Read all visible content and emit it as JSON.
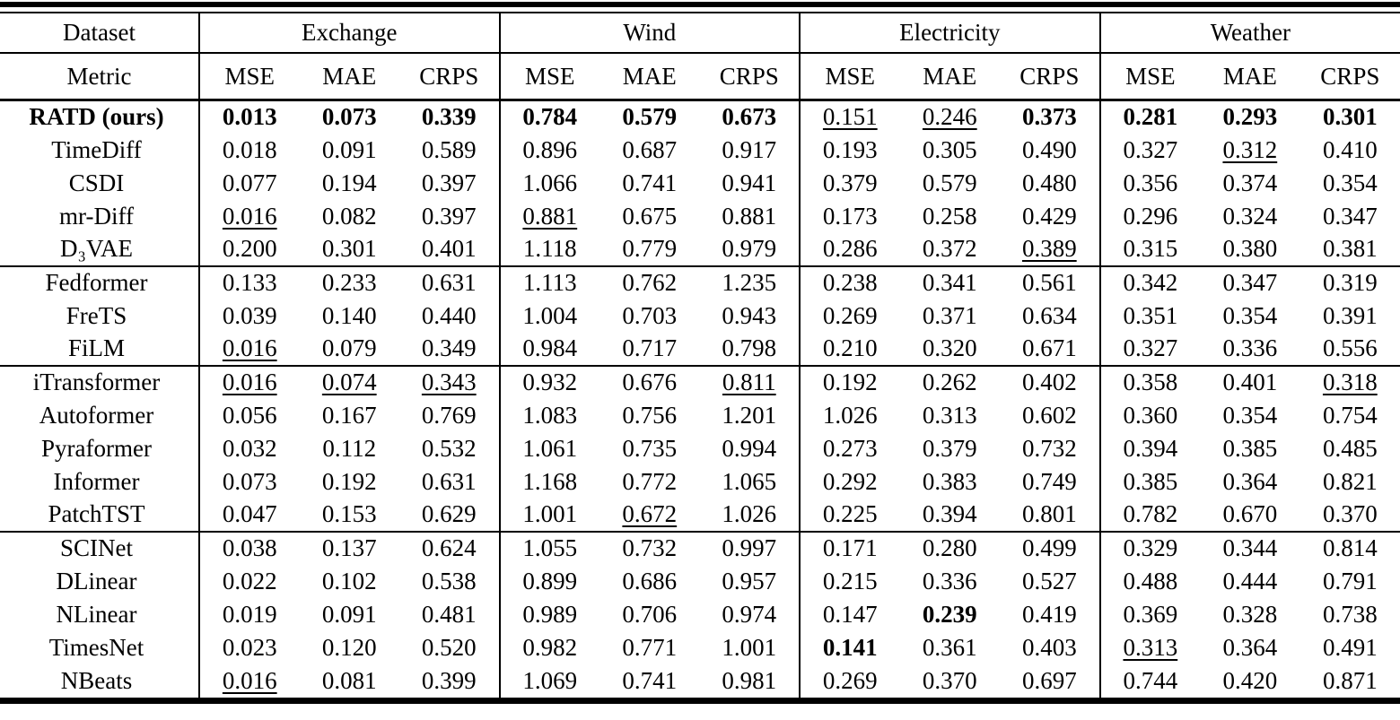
{
  "table": {
    "header": {
      "dataset_label": "Dataset",
      "metric_label": "Metric",
      "groups": [
        "Exchange",
        "Wind",
        "Electricity",
        "Weather"
      ],
      "metrics": [
        "MSE",
        "MAE",
        "CRPS"
      ]
    },
    "colors": {
      "text": "#000000",
      "background": "#ffffff",
      "rule": "#000000"
    },
    "blocks": [
      {
        "rows": [
          {
            "model": "RATD (ours)",
            "model_bold": true,
            "cells": [
              [
                "0.013",
                "b"
              ],
              [
                "0.073",
                "b"
              ],
              [
                "0.339",
                "b"
              ],
              [
                "0.784",
                "b"
              ],
              [
                "0.579",
                "b"
              ],
              [
                "0.673",
                "b"
              ],
              [
                "0.151",
                "u"
              ],
              [
                "0.246",
                "u"
              ],
              [
                "0.373",
                "b"
              ],
              [
                "0.281",
                "b"
              ],
              [
                "0.293",
                "b"
              ],
              [
                "0.301",
                "b"
              ]
            ]
          },
          {
            "model": "TimeDiff",
            "model_bold": false,
            "cells": [
              [
                "0.018",
                ""
              ],
              [
                "0.091",
                ""
              ],
              [
                "0.589",
                ""
              ],
              [
                "0.896",
                ""
              ],
              [
                "0.687",
                ""
              ],
              [
                "0.917",
                ""
              ],
              [
                "0.193",
                ""
              ],
              [
                "0.305",
                ""
              ],
              [
                "0.490",
                ""
              ],
              [
                "0.327",
                ""
              ],
              [
                "0.312",
                "u"
              ],
              [
                "0.410",
                ""
              ]
            ]
          },
          {
            "model": "CSDI",
            "model_bold": false,
            "cells": [
              [
                "0.077",
                ""
              ],
              [
                "0.194",
                ""
              ],
              [
                "0.397",
                ""
              ],
              [
                "1.066",
                ""
              ],
              [
                "0.741",
                ""
              ],
              [
                "0.941",
                ""
              ],
              [
                "0.379",
                ""
              ],
              [
                "0.579",
                ""
              ],
              [
                "0.480",
                ""
              ],
              [
                "0.356",
                ""
              ],
              [
                "0.374",
                ""
              ],
              [
                "0.354",
                ""
              ]
            ]
          },
          {
            "model": "mr-Diff",
            "model_bold": false,
            "cells": [
              [
                "0.016",
                "u"
              ],
              [
                "0.082",
                ""
              ],
              [
                "0.397",
                ""
              ],
              [
                "0.881",
                "u"
              ],
              [
                "0.675",
                ""
              ],
              [
                "0.881",
                ""
              ],
              [
                "0.173",
                ""
              ],
              [
                "0.258",
                ""
              ],
              [
                "0.429",
                ""
              ],
              [
                "0.296",
                ""
              ],
              [
                "0.324",
                ""
              ],
              [
                "0.347",
                ""
              ]
            ]
          },
          {
            "model": "D₃VAE",
            "model_bold": false,
            "cells": [
              [
                "0.200",
                ""
              ],
              [
                "0.301",
                ""
              ],
              [
                "0.401",
                ""
              ],
              [
                "1.118",
                ""
              ],
              [
                "0.779",
                ""
              ],
              [
                "0.979",
                ""
              ],
              [
                "0.286",
                ""
              ],
              [
                "0.372",
                ""
              ],
              [
                "0.389",
                "u"
              ],
              [
                "0.315",
                ""
              ],
              [
                "0.380",
                ""
              ],
              [
                "0.381",
                ""
              ]
            ]
          }
        ]
      },
      {
        "rows": [
          {
            "model": "Fedformer",
            "model_bold": false,
            "cells": [
              [
                "0.133",
                ""
              ],
              [
                "0.233",
                ""
              ],
              [
                "0.631",
                ""
              ],
              [
                "1.113",
                ""
              ],
              [
                "0.762",
                ""
              ],
              [
                "1.235",
                ""
              ],
              [
                "0.238",
                ""
              ],
              [
                "0.341",
                ""
              ],
              [
                "0.561",
                ""
              ],
              [
                "0.342",
                ""
              ],
              [
                "0.347",
                ""
              ],
              [
                "0.319",
                ""
              ]
            ]
          },
          {
            "model": "FreTS",
            "model_bold": false,
            "cells": [
              [
                "0.039",
                ""
              ],
              [
                "0.140",
                ""
              ],
              [
                "0.440",
                ""
              ],
              [
                "1.004",
                ""
              ],
              [
                "0.703",
                ""
              ],
              [
                "0.943",
                ""
              ],
              [
                "0.269",
                ""
              ],
              [
                "0.371",
                ""
              ],
              [
                "0.634",
                ""
              ],
              [
                "0.351",
                ""
              ],
              [
                "0.354",
                ""
              ],
              [
                "0.391",
                ""
              ]
            ]
          },
          {
            "model": "FiLM",
            "model_bold": false,
            "cells": [
              [
                "0.016",
                "u"
              ],
              [
                "0.079",
                ""
              ],
              [
                "0.349",
                ""
              ],
              [
                "0.984",
                ""
              ],
              [
                "0.717",
                ""
              ],
              [
                "0.798",
                ""
              ],
              [
                "0.210",
                ""
              ],
              [
                "0.320",
                ""
              ],
              [
                "0.671",
                ""
              ],
              [
                "0.327",
                ""
              ],
              [
                "0.336",
                ""
              ],
              [
                "0.556",
                ""
              ]
            ]
          }
        ]
      },
      {
        "rows": [
          {
            "model": "iTransformer",
            "model_bold": false,
            "cells": [
              [
                "0.016",
                "u"
              ],
              [
                "0.074",
                "u"
              ],
              [
                "0.343",
                "u"
              ],
              [
                "0.932",
                ""
              ],
              [
                "0.676",
                ""
              ],
              [
                "0.811",
                "u"
              ],
              [
                "0.192",
                ""
              ],
              [
                "0.262",
                ""
              ],
              [
                "0.402",
                ""
              ],
              [
                "0.358",
                ""
              ],
              [
                "0.401",
                ""
              ],
              [
                "0.318",
                "u"
              ]
            ]
          },
          {
            "model": "Autoformer",
            "model_bold": false,
            "cells": [
              [
                "0.056",
                ""
              ],
              [
                "0.167",
                ""
              ],
              [
                "0.769",
                ""
              ],
              [
                "1.083",
                ""
              ],
              [
                "0.756",
                ""
              ],
              [
                "1.201",
                ""
              ],
              [
                "1.026",
                ""
              ],
              [
                "0.313",
                ""
              ],
              [
                "0.602",
                ""
              ],
              [
                "0.360",
                ""
              ],
              [
                "0.354",
                ""
              ],
              [
                "0.754",
                ""
              ]
            ]
          },
          {
            "model": "Pyraformer",
            "model_bold": false,
            "cells": [
              [
                "0.032",
                ""
              ],
              [
                "0.112",
                ""
              ],
              [
                "0.532",
                ""
              ],
              [
                "1.061",
                ""
              ],
              [
                "0.735",
                ""
              ],
              [
                "0.994",
                ""
              ],
              [
                "0.273",
                ""
              ],
              [
                "0.379",
                ""
              ],
              [
                "0.732",
                ""
              ],
              [
                "0.394",
                ""
              ],
              [
                "0.385",
                ""
              ],
              [
                "0.485",
                ""
              ]
            ]
          },
          {
            "model": "Informer",
            "model_bold": false,
            "cells": [
              [
                "0.073",
                ""
              ],
              [
                "0.192",
                ""
              ],
              [
                "0.631",
                ""
              ],
              [
                "1.168",
                ""
              ],
              [
                "0.772",
                ""
              ],
              [
                "1.065",
                ""
              ],
              [
                "0.292",
                ""
              ],
              [
                "0.383",
                ""
              ],
              [
                "0.749",
                ""
              ],
              [
                "0.385",
                ""
              ],
              [
                "0.364",
                ""
              ],
              [
                "0.821",
                ""
              ]
            ]
          },
          {
            "model": "PatchTST",
            "model_bold": false,
            "cells": [
              [
                "0.047",
                ""
              ],
              [
                "0.153",
                ""
              ],
              [
                "0.629",
                ""
              ],
              [
                "1.001",
                ""
              ],
              [
                "0.672",
                "u"
              ],
              [
                "1.026",
                ""
              ],
              [
                "0.225",
                ""
              ],
              [
                "0.394",
                ""
              ],
              [
                "0.801",
                ""
              ],
              [
                "0.782",
                ""
              ],
              [
                "0.670",
                ""
              ],
              [
                "0.370",
                ""
              ]
            ]
          }
        ]
      },
      {
        "rows": [
          {
            "model": "SCINet",
            "model_bold": false,
            "cells": [
              [
                "0.038",
                ""
              ],
              [
                "0.137",
                ""
              ],
              [
                "0.624",
                ""
              ],
              [
                "1.055",
                ""
              ],
              [
                "0.732",
                ""
              ],
              [
                "0.997",
                ""
              ],
              [
                "0.171",
                ""
              ],
              [
                "0.280",
                ""
              ],
              [
                "0.499",
                ""
              ],
              [
                "0.329",
                ""
              ],
              [
                "0.344",
                ""
              ],
              [
                "0.814",
                ""
              ]
            ]
          },
          {
            "model": "DLinear",
            "model_bold": false,
            "cells": [
              [
                "0.022",
                ""
              ],
              [
                "0.102",
                ""
              ],
              [
                "0.538",
                ""
              ],
              [
                "0.899",
                ""
              ],
              [
                "0.686",
                ""
              ],
              [
                "0.957",
                ""
              ],
              [
                "0.215",
                ""
              ],
              [
                "0.336",
                ""
              ],
              [
                "0.527",
                ""
              ],
              [
                "0.488",
                ""
              ],
              [
                "0.444",
                ""
              ],
              [
                "0.791",
                ""
              ]
            ]
          },
          {
            "model": "NLinear",
            "model_bold": false,
            "cells": [
              [
                "0.019",
                ""
              ],
              [
                "0.091",
                ""
              ],
              [
                "0.481",
                ""
              ],
              [
                "0.989",
                ""
              ],
              [
                "0.706",
                ""
              ],
              [
                "0.974",
                ""
              ],
              [
                "0.147",
                ""
              ],
              [
                "0.239",
                "b"
              ],
              [
                "0.419",
                ""
              ],
              [
                "0.369",
                ""
              ],
              [
                "0.328",
                ""
              ],
              [
                "0.738",
                ""
              ]
            ]
          },
          {
            "model": "TimesNet",
            "model_bold": false,
            "cells": [
              [
                "0.023",
                ""
              ],
              [
                "0.120",
                ""
              ],
              [
                "0.520",
                ""
              ],
              [
                "0.982",
                ""
              ],
              [
                "0.771",
                ""
              ],
              [
                "1.001",
                ""
              ],
              [
                "0.141",
                "b"
              ],
              [
                "0.361",
                ""
              ],
              [
                "0.403",
                ""
              ],
              [
                "0.313",
                "u"
              ],
              [
                "0.364",
                ""
              ],
              [
                "0.491",
                ""
              ]
            ]
          },
          {
            "model": "NBeats",
            "model_bold": false,
            "cells": [
              [
                "0.016",
                "u"
              ],
              [
                "0.081",
                ""
              ],
              [
                "0.399",
                ""
              ],
              [
                "1.069",
                ""
              ],
              [
                "0.741",
                ""
              ],
              [
                "0.981",
                ""
              ],
              [
                "0.269",
                ""
              ],
              [
                "0.370",
                ""
              ],
              [
                "0.697",
                ""
              ],
              [
                "0.744",
                ""
              ],
              [
                "0.420",
                ""
              ],
              [
                "0.871",
                ""
              ]
            ]
          }
        ]
      }
    ]
  }
}
